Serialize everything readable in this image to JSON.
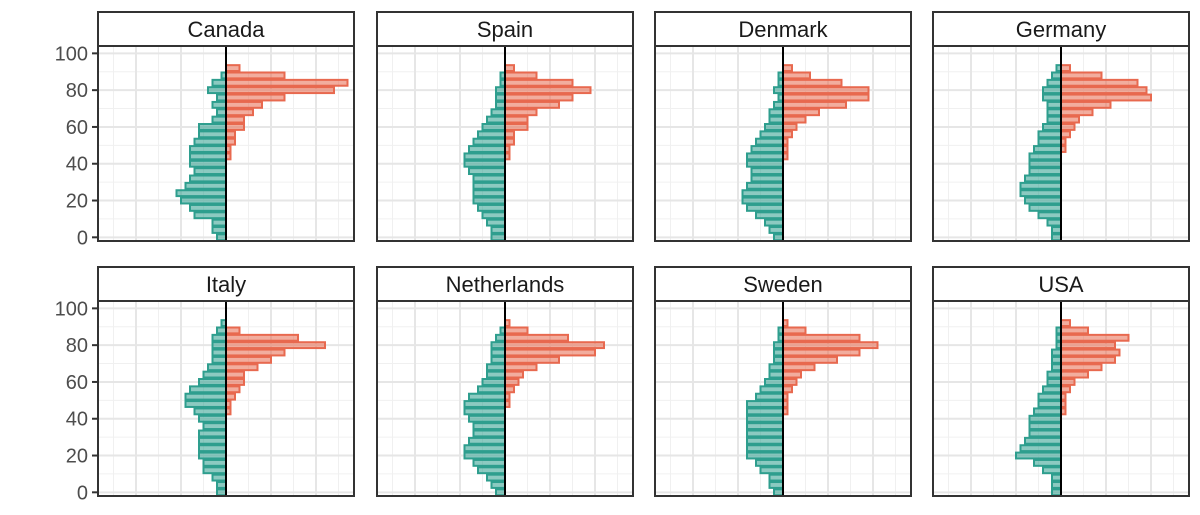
{
  "chart_data": {
    "type": "bar",
    "orientation": "horizontal",
    "layout": "faceted population pyramids, 2 rows x 4 columns",
    "y_ticks": [
      0,
      20,
      40,
      60,
      80,
      100
    ],
    "ylim": [
      -2,
      104
    ],
    "bin_width": 4,
    "grid": true,
    "colors": {
      "left_series": "#2e9e8e",
      "right_series": "#e8694f"
    },
    "x_scale_max": 0.28,
    "bins": [
      0,
      4,
      8,
      12,
      16,
      20,
      24,
      28,
      32,
      36,
      40,
      44,
      48,
      52,
      56,
      60,
      64,
      68,
      72,
      76,
      80,
      84,
      88,
      92,
      96,
      100
    ],
    "series": [
      {
        "country": "Canada",
        "left_values": [
          0.02,
          0.03,
          0.03,
          0.07,
          0.08,
          0.1,
          0.11,
          0.09,
          0.08,
          0.07,
          0.08,
          0.08,
          0.08,
          0.07,
          0.06,
          0.06,
          0.03,
          0.02,
          0.03,
          0.02,
          0.04,
          0.03,
          0.01,
          0.0,
          0.0,
          0.0
        ],
        "right_values": [
          0.0,
          0.0,
          0.0,
          0.0,
          0.0,
          0.0,
          0.0,
          0.0,
          0.0,
          0.0,
          0.0,
          0.01,
          0.01,
          0.02,
          0.02,
          0.04,
          0.04,
          0.06,
          0.08,
          0.13,
          0.24,
          0.27,
          0.13,
          0.03,
          0.0,
          0.0
        ]
      },
      {
        "country": "Spain",
        "left_values": [
          0.03,
          0.03,
          0.04,
          0.05,
          0.06,
          0.07,
          0.07,
          0.07,
          0.07,
          0.08,
          0.09,
          0.09,
          0.08,
          0.07,
          0.06,
          0.05,
          0.04,
          0.03,
          0.02,
          0.02,
          0.02,
          0.01,
          0.01,
          0.0,
          0.0,
          0.0
        ],
        "right_values": [
          0.0,
          0.0,
          0.0,
          0.0,
          0.0,
          0.0,
          0.0,
          0.0,
          0.0,
          0.0,
          0.0,
          0.01,
          0.01,
          0.02,
          0.02,
          0.05,
          0.05,
          0.07,
          0.12,
          0.15,
          0.19,
          0.15,
          0.07,
          0.02,
          0.0,
          0.0
        ]
      },
      {
        "country": "Denmark",
        "left_values": [
          0.02,
          0.03,
          0.04,
          0.06,
          0.08,
          0.09,
          0.09,
          0.08,
          0.07,
          0.07,
          0.08,
          0.08,
          0.07,
          0.06,
          0.05,
          0.04,
          0.03,
          0.03,
          0.02,
          0.01,
          0.02,
          0.01,
          0.01,
          0.0,
          0.0,
          0.0
        ],
        "right_values": [
          0.0,
          0.0,
          0.0,
          0.0,
          0.0,
          0.0,
          0.0,
          0.0,
          0.0,
          0.0,
          0.0,
          0.01,
          0.01,
          0.01,
          0.02,
          0.03,
          0.05,
          0.08,
          0.14,
          0.19,
          0.19,
          0.13,
          0.06,
          0.02,
          0.0,
          0.0
        ]
      },
      {
        "country": "Germany",
        "left_values": [
          0.02,
          0.02,
          0.03,
          0.05,
          0.07,
          0.08,
          0.09,
          0.09,
          0.08,
          0.07,
          0.07,
          0.07,
          0.06,
          0.05,
          0.05,
          0.04,
          0.03,
          0.03,
          0.03,
          0.04,
          0.04,
          0.03,
          0.02,
          0.01,
          0.0,
          0.0
        ],
        "right_values": [
          0.0,
          0.0,
          0.0,
          0.0,
          0.0,
          0.0,
          0.0,
          0.0,
          0.0,
          0.0,
          0.0,
          0.0,
          0.01,
          0.01,
          0.02,
          0.03,
          0.04,
          0.07,
          0.11,
          0.2,
          0.19,
          0.17,
          0.09,
          0.02,
          0.0,
          0.0
        ]
      },
      {
        "country": "Italy",
        "left_values": [
          0.02,
          0.02,
          0.03,
          0.05,
          0.05,
          0.06,
          0.06,
          0.06,
          0.06,
          0.05,
          0.06,
          0.07,
          0.09,
          0.09,
          0.08,
          0.06,
          0.05,
          0.04,
          0.03,
          0.03,
          0.03,
          0.03,
          0.02,
          0.01,
          0.0,
          0.0
        ],
        "right_values": [
          0.0,
          0.0,
          0.0,
          0.0,
          0.0,
          0.0,
          0.0,
          0.0,
          0.0,
          0.0,
          0.0,
          0.01,
          0.01,
          0.02,
          0.03,
          0.04,
          0.04,
          0.07,
          0.1,
          0.13,
          0.22,
          0.16,
          0.03,
          0.0,
          0.0,
          0.0
        ]
      },
      {
        "country": "Netherlands",
        "left_values": [
          0.02,
          0.03,
          0.04,
          0.06,
          0.07,
          0.09,
          0.09,
          0.08,
          0.07,
          0.07,
          0.08,
          0.09,
          0.09,
          0.08,
          0.06,
          0.05,
          0.04,
          0.04,
          0.03,
          0.03,
          0.03,
          0.02,
          0.01,
          0.0,
          0.0,
          0.0
        ],
        "right_values": [
          0.0,
          0.0,
          0.0,
          0.0,
          0.0,
          0.0,
          0.0,
          0.0,
          0.0,
          0.0,
          0.0,
          0.0,
          0.01,
          0.01,
          0.02,
          0.03,
          0.04,
          0.07,
          0.12,
          0.2,
          0.22,
          0.14,
          0.05,
          0.01,
          0.0,
          0.0
        ]
      },
      {
        "country": "Sweden",
        "left_values": [
          0.02,
          0.03,
          0.03,
          0.05,
          0.06,
          0.08,
          0.08,
          0.08,
          0.08,
          0.08,
          0.08,
          0.08,
          0.08,
          0.06,
          0.05,
          0.04,
          0.03,
          0.03,
          0.02,
          0.02,
          0.02,
          0.01,
          0.01,
          0.0,
          0.0,
          0.0
        ],
        "right_values": [
          0.0,
          0.0,
          0.0,
          0.0,
          0.0,
          0.0,
          0.0,
          0.0,
          0.0,
          0.0,
          0.0,
          0.01,
          0.01,
          0.01,
          0.02,
          0.03,
          0.04,
          0.07,
          0.12,
          0.17,
          0.21,
          0.17,
          0.05,
          0.01,
          0.0,
          0.0
        ]
      },
      {
        "country": "USA",
        "left_values": [
          0.02,
          0.02,
          0.02,
          0.04,
          0.06,
          0.1,
          0.09,
          0.08,
          0.07,
          0.07,
          0.07,
          0.06,
          0.05,
          0.05,
          0.04,
          0.03,
          0.03,
          0.02,
          0.02,
          0.02,
          0.01,
          0.01,
          0.01,
          0.0,
          0.0,
          0.0
        ],
        "right_values": [
          0.0,
          0.0,
          0.0,
          0.0,
          0.0,
          0.0,
          0.0,
          0.0,
          0.0,
          0.0,
          0.0,
          0.01,
          0.01,
          0.01,
          0.02,
          0.03,
          0.06,
          0.09,
          0.12,
          0.13,
          0.12,
          0.15,
          0.06,
          0.02,
          0.0,
          0.0
        ]
      }
    ]
  }
}
